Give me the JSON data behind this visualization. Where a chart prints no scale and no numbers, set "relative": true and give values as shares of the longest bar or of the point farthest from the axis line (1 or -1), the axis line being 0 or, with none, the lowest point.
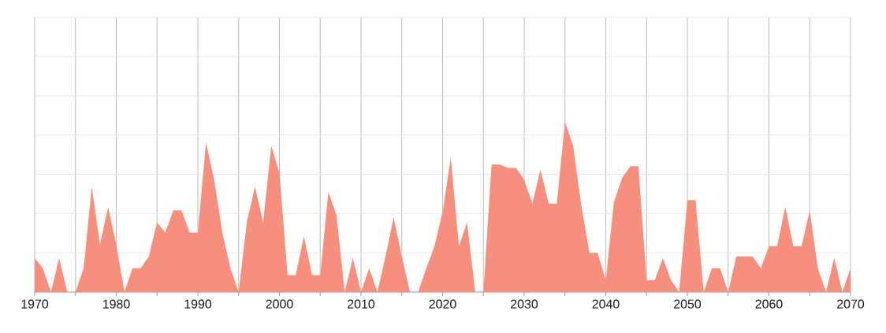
{
  "chart_data": {
    "type": "area",
    "relative": true,
    "color": "#f78f7e",
    "grid": true,
    "xlim": [
      1970,
      2070
    ],
    "xticks": [
      1970,
      {
        "value": 1975,
        "label": null
      },
      1980,
      {
        "value": 1985,
        "label": null
      },
      1990,
      {
        "value": 1995,
        "label": null
      },
      2000,
      {
        "value": 2005,
        "label": null
      },
      2010,
      {
        "value": 2015,
        "label": null
      },
      2020,
      {
        "value": 2025,
        "label": null
      },
      2030,
      {
        "value": 2035,
        "label": null
      },
      2040,
      {
        "value": 2045,
        "label": null
      },
      2050,
      {
        "value": 2055,
        "label": null
      },
      2060,
      {
        "value": 2065,
        "label": null
      },
      2070
    ],
    "x": [
      1970,
      1971,
      1972,
      1973,
      1974,
      1975,
      1976,
      1977,
      1978,
      1979,
      1980,
      1981,
      1982,
      1983,
      1984,
      1985,
      1986,
      1987,
      1988,
      1989,
      1990,
      1991,
      1992,
      1993,
      1994,
      1995,
      1996,
      1997,
      1998,
      1999,
      2000,
      2001,
      2002,
      2003,
      2004,
      2005,
      2006,
      2007,
      2008,
      2009,
      2010,
      2011,
      2012,
      2013,
      2014,
      2015,
      2016,
      2017,
      2018,
      2019,
      2020,
      2021,
      2022,
      2023,
      2024,
      2025,
      2026,
      2027,
      2028,
      2029,
      2030,
      2031,
      2032,
      2033,
      2034,
      2035,
      2036,
      2037,
      2038,
      2039,
      2040,
      2041,
      2042,
      2043,
      2044,
      2045,
      2046,
      2047,
      2048,
      2049,
      2050,
      2051,
      2052,
      2053,
      2054,
      2055,
      2056,
      2057,
      2058,
      2059,
      2060,
      2061,
      2062,
      2063,
      2064,
      2065,
      2066,
      2067,
      2068,
      2069,
      2070
    ],
    "values": [
      0.2,
      0.14,
      0,
      0.2,
      0,
      0,
      0.14,
      0.62,
      0.28,
      0.5,
      0.28,
      0,
      0.14,
      0.14,
      0.21,
      0.41,
      0.35,
      0.48,
      0.48,
      0.35,
      0.35,
      0.88,
      0.66,
      0.35,
      0.14,
      0,
      0.41,
      0.62,
      0.41,
      0.86,
      0.7,
      0.1,
      0.1,
      0.33,
      0.1,
      0.1,
      0.59,
      0.45,
      0,
      0.2,
      0,
      0.14,
      0,
      0.21,
      0.44,
      0.21,
      0,
      0,
      0.14,
      0.27,
      0.47,
      0.79,
      0.27,
      0.41,
      0,
      0,
      0.75,
      0.75,
      0.73,
      0.73,
      0.66,
      0.52,
      0.72,
      0.52,
      0.52,
      1,
      0.86,
      0.51,
      0.23,
      0.23,
      0.07,
      0.53,
      0.67,
      0.74,
      0.74,
      0.07,
      0.07,
      0.2,
      0.07,
      0,
      0.54,
      0.54,
      0,
      0.14,
      0.14,
      0,
      0.21,
      0.21,
      0.21,
      0.14,
      0.27,
      0.27,
      0.5,
      0.27,
      0.27,
      0.48,
      0.14,
      0,
      0.2,
      0,
      0.14
    ]
  }
}
